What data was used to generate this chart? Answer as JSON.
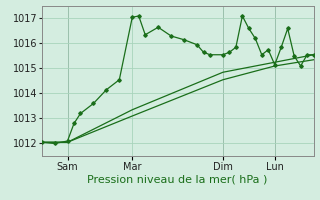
{
  "background_color": "#d4ede0",
  "grid_color": "#a8d4bc",
  "line_color": "#1a6e1a",
  "xlabel": "Pression niveau de la mer( hPa )",
  "ylim": [
    1011.5,
    1017.5
  ],
  "yticks": [
    1012,
    1013,
    1014,
    1015,
    1016,
    1017
  ],
  "x_tick_labels": [
    "Sam",
    "Mar",
    "Dim",
    "Lun"
  ],
  "x_tick_positions": [
    8,
    28,
    56,
    72
  ],
  "xlim": [
    0,
    84
  ],
  "xlabel_fontsize": 8,
  "ytick_fontsize": 7,
  "xtick_fontsize": 7,
  "vlines_x": [
    8,
    56,
    72
  ],
  "s1x": [
    0,
    4,
    8,
    10,
    12,
    16,
    20,
    24,
    28,
    30,
    32,
    36,
    40,
    44,
    48,
    50,
    52,
    56,
    58,
    60,
    62,
    64,
    66,
    68,
    70,
    72,
    74,
    76,
    78,
    80,
    82,
    84
  ],
  "s1y": [
    1012.05,
    1012.0,
    1012.1,
    1012.8,
    1013.2,
    1013.6,
    1014.15,
    1014.55,
    1017.05,
    1017.1,
    1016.35,
    1016.65,
    1016.3,
    1016.15,
    1015.95,
    1015.65,
    1015.55,
    1015.55,
    1015.65,
    1015.85,
    1017.1,
    1016.6,
    1016.2,
    1015.55,
    1015.75,
    1015.15,
    1015.85,
    1016.6,
    1015.5,
    1015.1,
    1015.55,
    1015.55
  ],
  "s2x": [
    0,
    8,
    28,
    56,
    72,
    84
  ],
  "s2y": [
    1012.05,
    1012.05,
    1013.1,
    1014.55,
    1015.1,
    1015.35
  ],
  "s3x": [
    0,
    8,
    28,
    56,
    72,
    84
  ],
  "s3y": [
    1012.05,
    1012.05,
    1013.35,
    1014.85,
    1015.25,
    1015.55
  ]
}
